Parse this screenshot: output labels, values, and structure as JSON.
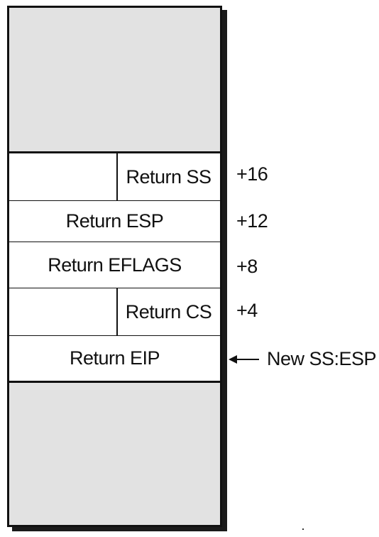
{
  "stack": {
    "entries": [
      {
        "label": "Return SS",
        "offset": "+16"
      },
      {
        "label": "Return ESP",
        "offset": "+12"
      },
      {
        "label": "Return EFLAGS",
        "offset": "+8"
      },
      {
        "label": "Return CS",
        "offset": "+4"
      },
      {
        "label": "Return EIP",
        "offset": ""
      }
    ]
  },
  "pointer": {
    "label": "New SS:ESP"
  }
}
